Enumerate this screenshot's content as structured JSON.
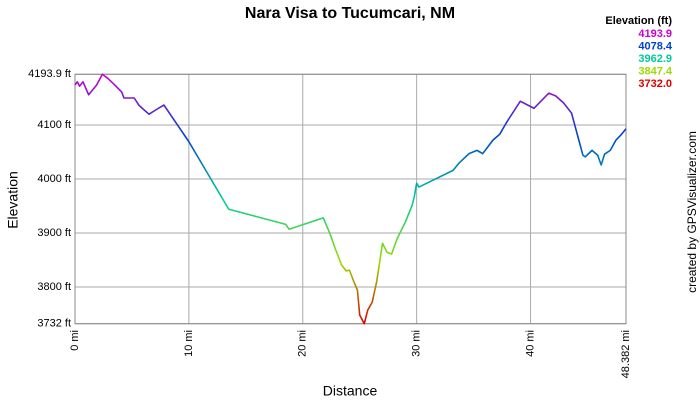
{
  "chart_data": {
    "type": "line",
    "title": "Nara Visa to Tucumcari, NM",
    "x_label": "Distance",
    "y_label": "Elevation",
    "x": [
      0,
      0.2,
      0.4,
      0.7,
      1.2,
      1.9,
      2.4,
      2.9,
      3.5,
      4.1,
      4.3,
      4.9,
      5.2,
      5.6,
      5.9,
      6.5,
      7.1,
      7.8,
      8.0,
      10,
      13.5,
      18.5,
      18.8,
      21.8,
      22.4,
      22.8,
      23.4,
      23.8,
      24.1,
      24.5,
      24.8,
      25.0,
      25.4,
      25.7,
      26.1,
      26.5,
      27.0,
      27.4,
      27.8,
      28.3,
      29.0,
      29.6,
      29.8,
      30.0,
      30.2,
      33.2,
      33.7,
      34.6,
      35.3,
      35.8,
      36.7,
      37.3,
      37.9,
      39.1,
      40.3,
      41.6,
      42.2,
      42.9,
      43.6,
      44.6,
      44.8,
      45.4,
      45.9,
      46.2,
      46.5,
      47.0,
      47.5,
      48.0,
      48.382
    ],
    "values": [
      4174,
      4180,
      4172,
      4180,
      4156,
      4174,
      4194,
      4186,
      4174,
      4161,
      4150,
      4150,
      4150,
      4137,
      4131,
      4120,
      4128,
      4137,
      4131,
      4069,
      3944,
      3916,
      3907,
      3928,
      3898,
      3874,
      3841,
      3830,
      3831,
      3809,
      3794,
      3748,
      3732,
      3757,
      3772,
      3811,
      3881,
      3864,
      3861,
      3890,
      3920,
      3951,
      3968,
      3992,
      3985,
      4016,
      4029,
      4047,
      4053,
      4047,
      4072,
      4083,
      4105,
      4144,
      4131,
      4159,
      4154,
      4141,
      4122,
      4044,
      4041,
      4053,
      4044,
      4026,
      4046,
      4053,
      4072,
      4083,
      4093
    ],
    "xlim": [
      0,
      48.382
    ],
    "ylim": [
      3732,
      4193.9
    ],
    "xticks": [
      {
        "value": 0,
        "label": "0 mi"
      },
      {
        "value": 10,
        "label": "10 mi"
      },
      {
        "value": 20,
        "label": "20 mi"
      },
      {
        "value": 30,
        "label": "30 mi"
      },
      {
        "value": 40,
        "label": "40 mi"
      },
      {
        "value": 48.382,
        "label": "48.382 mi"
      }
    ],
    "yticks": [
      {
        "value": 3732,
        "label": "3732 ft"
      },
      {
        "value": 3800,
        "label": "3800 ft"
      },
      {
        "value": 3900,
        "label": "3900 ft"
      },
      {
        "value": 4000,
        "label": "4000 ft"
      },
      {
        "value": 4100,
        "label": "4100 ft"
      },
      {
        "value": 4193.9,
        "label": "4193.9 ft"
      }
    ],
    "grid": true,
    "legend": {
      "title": "Elevation (ft)",
      "entries": [
        {
          "value": 4193.9,
          "label": "4193.9",
          "color": "#cc00cc"
        },
        {
          "value": 4078.4,
          "label": "4078.4",
          "color": "#0044cc"
        },
        {
          "value": 3962.9,
          "label": "3962.9",
          "color": "#00cc99"
        },
        {
          "value": 3847.4,
          "label": "3847.4",
          "color": "#99dd00"
        },
        {
          "value": 3732.0,
          "label": "3732.0",
          "color": "#dd0000"
        }
      ]
    },
    "credit": "created by GPSVisualizer.com"
  }
}
